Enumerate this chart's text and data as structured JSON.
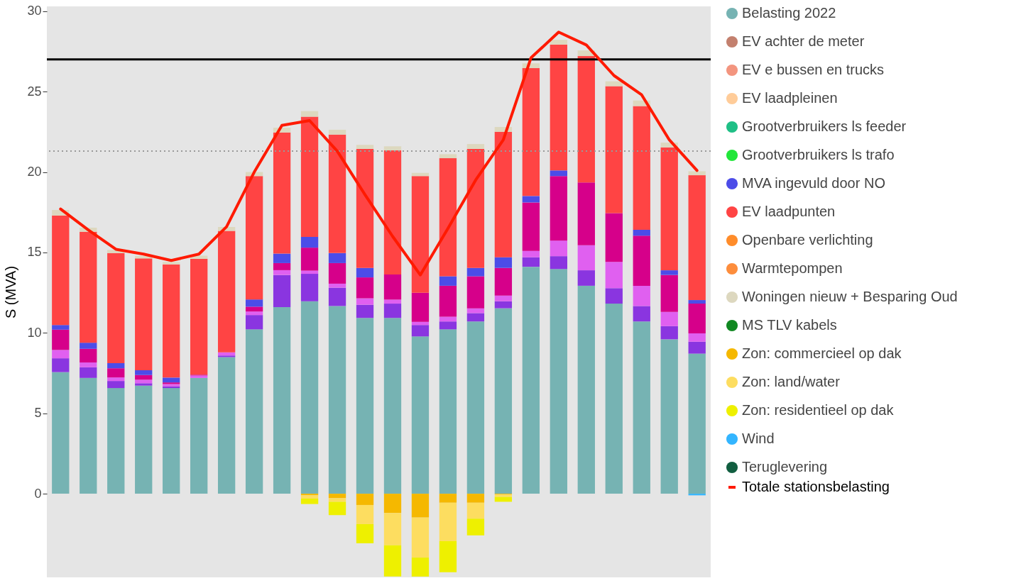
{
  "chart_data": {
    "type": "bar",
    "stacked": true,
    "ylabel": "S (MVA)",
    "categories": [
      null,
      null,
      null,
      null,
      null,
      null,
      null,
      null,
      null,
      null,
      null,
      null,
      null,
      null,
      null,
      null,
      null,
      null,
      null,
      null,
      null,
      null,
      null,
      null
    ],
    "ylim": [
      -5.2,
      30.3
    ],
    "yticks": [
      0,
      5,
      10,
      15,
      20,
      25,
      30
    ],
    "tick_labels": "y",
    "grid": false,
    "legend": "right",
    "ref_lines": [
      {
        "axis": "y",
        "value": 27,
        "color": "#000000",
        "line_style": "solid"
      },
      {
        "axis": "y",
        "value": 21.3,
        "color": "#9a9a9a",
        "line_style": "dotted"
      }
    ],
    "series": [
      {
        "name": "Belasting 2022",
        "color": "#76b3b3",
        "values": [
          7.56,
          7.2,
          6.57,
          6.72,
          6.57,
          7.2,
          8.49,
          10.22,
          11.6,
          11.97,
          11.67,
          10.93,
          10.93,
          9.78,
          10.22,
          10.71,
          11.53,
          14.11,
          13.97,
          12.93,
          11.82,
          10.71,
          9.6,
          8.71
        ]
      },
      {
        "color": "#8a35e0",
        "values": [
          0.86,
          0.66,
          0.44,
          0.15,
          0.1,
          null,
          0.1,
          0.89,
          2.0,
          1.7,
          1.14,
          0.82,
          0.89,
          0.71,
          0.49,
          0.52,
          0.44,
          0.59,
          0.8,
          0.96,
          0.96,
          0.96,
          0.82,
          0.74
        ]
      },
      {
        "color": "#e060f0",
        "values": [
          0.52,
          0.3,
          0.22,
          0.22,
          0.15,
          0.15,
          0.2,
          0.22,
          0.3,
          0.2,
          0.25,
          0.4,
          0.25,
          0.2,
          0.3,
          0.3,
          0.35,
          0.4,
          0.97,
          1.56,
          1.63,
          1.26,
          0.88,
          0.52
        ]
      },
      {
        "color": "#d6008a",
        "values": [
          1.26,
          0.85,
          0.57,
          0.29,
          0.1,
          0.05,
          null,
          0.3,
          0.44,
          1.43,
          1.28,
          1.3,
          1.56,
          1.8,
          1.92,
          1.99,
          1.72,
          3.01,
          4.01,
          3.9,
          3.03,
          3.11,
          2.3,
          1.85
        ]
      },
      {
        "name": "EV achter de meter",
        "color": "#c3806e",
        "values": [
          null,
          null,
          null,
          null,
          null,
          null,
          null,
          null,
          null,
          null,
          null,
          null,
          null,
          null,
          null,
          null,
          null,
          null,
          null,
          null,
          null,
          null,
          null,
          null
        ]
      },
      {
        "name": "EV e bussen en trucks",
        "color": "#f3957f",
        "values": [
          null,
          null,
          null,
          null,
          null,
          null,
          null,
          null,
          null,
          null,
          null,
          null,
          null,
          null,
          null,
          null,
          null,
          null,
          null,
          null,
          null,
          null,
          null,
          null
        ]
      },
      {
        "name": "EV laadpleinen",
        "color": "#ffcc99",
        "values": [
          null,
          null,
          null,
          null,
          null,
          null,
          null,
          null,
          null,
          null,
          null,
          null,
          null,
          null,
          null,
          null,
          null,
          null,
          null,
          null,
          null,
          null,
          null,
          null
        ]
      },
      {
        "name": "Grootverbruikers ls feeder",
        "color": "#1fbf86",
        "values": [
          null,
          null,
          null,
          null,
          null,
          null,
          null,
          null,
          null,
          null,
          null,
          null,
          null,
          null,
          null,
          null,
          null,
          null,
          null,
          null,
          null,
          null,
          null,
          null
        ]
      },
      {
        "name": "Grootverbruikers ls trafo",
        "color": "#22e63a",
        "values": [
          null,
          null,
          null,
          null,
          null,
          null,
          null,
          null,
          null,
          null,
          null,
          null,
          null,
          null,
          null,
          null,
          null,
          null,
          null,
          null,
          null,
          null,
          null,
          null
        ]
      },
      {
        "name": "MVA ingevuld door NO",
        "color": "#4c4ce8",
        "values": [
          0.29,
          0.38,
          0.32,
          0.3,
          0.3,
          null,
          null,
          0.45,
          0.59,
          0.67,
          0.62,
          0.59,
          null,
          null,
          0.59,
          0.52,
          0.66,
          0.4,
          0.35,
          null,
          null,
          0.37,
          0.29,
          0.22
        ]
      },
      {
        "name": "EV laadpunten",
        "color": "#ff4444",
        "values": [
          6.8,
          6.9,
          6.84,
          6.95,
          7.04,
          7.2,
          7.55,
          7.67,
          7.53,
          7.47,
          7.37,
          7.4,
          7.72,
          7.26,
          7.34,
          7.4,
          7.8,
          7.95,
          7.82,
          7.86,
          7.9,
          7.69,
          7.64,
          7.76
        ]
      },
      {
        "name": "Openbare verlichting",
        "color": "#ff8c2a",
        "values": [
          null,
          null,
          null,
          null,
          null,
          null,
          null,
          null,
          null,
          null,
          null,
          null,
          null,
          null,
          null,
          null,
          null,
          null,
          null,
          null,
          null,
          null,
          null,
          null
        ]
      },
      {
        "name": "Warmtepompen",
        "color": "#fd8d3c",
        "values": [
          null,
          null,
          null,
          null,
          null,
          null,
          null,
          null,
          null,
          null,
          null,
          null,
          null,
          null,
          null,
          null,
          null,
          null,
          null,
          null,
          null,
          null,
          null,
          null
        ]
      },
      {
        "name": "Woningen nieuw + Besparing Oud",
        "color": "#ddd8bf",
        "values": [
          0.35,
          0.25,
          0.2,
          0.15,
          0.15,
          0.2,
          0.25,
          0.25,
          0.3,
          0.35,
          0.3,
          0.25,
          0.25,
          0.2,
          0.25,
          0.3,
          0.3,
          0.3,
          0.3,
          0.35,
          0.3,
          0.35,
          0.3,
          0.25
        ]
      },
      {
        "name": "MS TLV kabels",
        "color": "#118822",
        "values": [
          null,
          null,
          null,
          null,
          null,
          null,
          null,
          null,
          null,
          null,
          null,
          null,
          null,
          null,
          null,
          null,
          null,
          null,
          null,
          null,
          null,
          null,
          null,
          null
        ]
      },
      {
        "name": "Zon: commercieel op dak",
        "color": "#f5b800",
        "values": [
          null,
          null,
          null,
          null,
          null,
          null,
          null,
          null,
          null,
          -0.1,
          -0.28,
          -0.7,
          -1.2,
          -1.48,
          -0.56,
          -0.56,
          -0.05,
          null,
          null,
          null,
          null,
          null,
          null,
          null
        ]
      },
      {
        "name": "Zon: land/water",
        "color": "#fddd60",
        "values": [
          null,
          null,
          null,
          null,
          null,
          null,
          null,
          null,
          null,
          -0.2,
          -0.22,
          -1.19,
          -2.0,
          -2.49,
          -2.39,
          -0.99,
          -0.15,
          null,
          null,
          null,
          null,
          null,
          null,
          null
        ]
      },
      {
        "name": "Zon: residentieel op dak",
        "color": "#eef000",
        "values": [
          null,
          null,
          null,
          null,
          null,
          null,
          null,
          null,
          null,
          -0.34,
          -0.83,
          -1.19,
          -1.95,
          -1.18,
          -1.93,
          -1.04,
          -0.3,
          null,
          null,
          null,
          null,
          null,
          null,
          null
        ]
      },
      {
        "name": "Wind",
        "color": "#33b5ff",
        "values": [
          null,
          null,
          null,
          null,
          null,
          null,
          null,
          null,
          null,
          null,
          null,
          null,
          null,
          null,
          null,
          null,
          null,
          null,
          null,
          null,
          null,
          null,
          null,
          -0.1
        ]
      },
      {
        "name": "Teruglevering",
        "color": "#115e40",
        "values": [
          null,
          null,
          null,
          null,
          null,
          null,
          null,
          null,
          null,
          null,
          null,
          null,
          null,
          null,
          null,
          null,
          null,
          null,
          null,
          null,
          null,
          null,
          null,
          null
        ]
      },
      {
        "name": "Totale stationsbelasting",
        "type": "line",
        "color": "#ff1a00",
        "values": [
          17.7,
          16.4,
          15.2,
          14.9,
          14.5,
          14.9,
          16.6,
          20.0,
          22.9,
          23.2,
          21.3,
          18.6,
          16.0,
          13.6,
          16.5,
          19.5,
          22.0,
          27.1,
          28.7,
          27.9,
          26.0,
          24.8,
          22.0,
          20.1
        ]
      }
    ]
  }
}
